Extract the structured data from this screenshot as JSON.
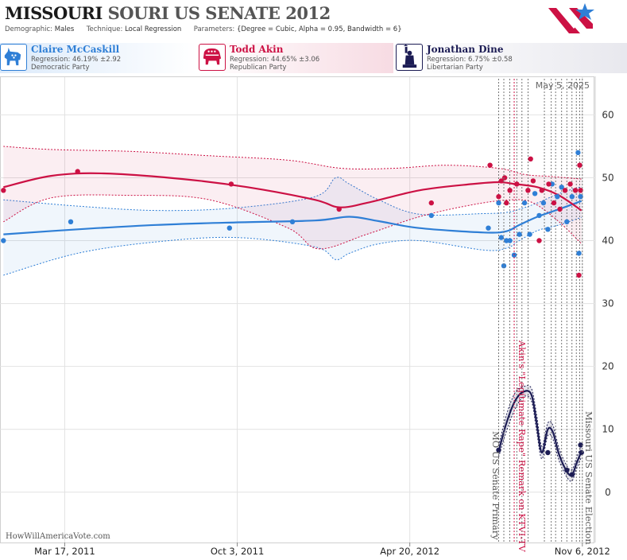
{
  "header": {
    "title_state": "MISSOURI",
    "title_rest": "SOURI US SENATE 2012",
    "demographic_label": "Demographic:",
    "demographic_value": "Males",
    "technique_label": "Technique:",
    "technique_value": "Local Regression",
    "parameters_label": "Parameters:",
    "parameters_value": "{Degree = Cubic, Alpha = 0.95, Bandwidth = 6}"
  },
  "candidates": [
    {
      "name": "Claire McCaskill",
      "regression": "Regression: 46.19% ±2.92",
      "party": "Democratic Party",
      "color": "#2f7fd6",
      "icon": "donkey-icon"
    },
    {
      "name": "Todd Akin",
      "regression": "Regression: 44.65% ±3.06",
      "party": "Republican Party",
      "color": "#cc1144",
      "icon": "elephant-icon"
    },
    {
      "name": "Jonathan Dine",
      "regression": "Regression: 6.75% ±0.58",
      "party": "Libertarian Party",
      "color": "#1c1c54",
      "icon": "liberty-icon"
    }
  ],
  "watermark": "HowWillAmericaVote.com",
  "colors": {
    "democrat": "#2f7fd6",
    "republican": "#cc1144",
    "libertarian": "#1c1c54",
    "grid": "#e2e2e2"
  },
  "chart_data": {
    "type": "scatter",
    "date_label": "May 5, 2025",
    "x_range": [
      "2011-01-01",
      "2012-11-20"
    ],
    "ylim": [
      -8,
      66
    ],
    "y_ticks": [
      0,
      10,
      20,
      30,
      40,
      50,
      60
    ],
    "x_ticks": [
      {
        "date": "2011-03-17",
        "label": "Mar 17, 2011"
      },
      {
        "date": "2011-10-03",
        "label": "Oct 3, 2011"
      },
      {
        "date": "2012-04-20",
        "label": "Apr 20, 2012"
      },
      {
        "date": "2012-11-06",
        "label": "Nov 6, 2012"
      }
    ],
    "grid": true,
    "series": [
      {
        "name": "Claire McCaskill",
        "color": "#2f7fd6",
        "points": [
          [
            "2011-01-05",
            40
          ],
          [
            "2011-03-24",
            43
          ],
          [
            "2011-09-24",
            42
          ],
          [
            "2011-12-06",
            43
          ],
          [
            "2012-05-15",
            44
          ],
          [
            "2012-07-20",
            42
          ],
          [
            "2012-08-01",
            46
          ],
          [
            "2012-08-04",
            40.5
          ],
          [
            "2012-08-07",
            36
          ],
          [
            "2012-08-10",
            40
          ],
          [
            "2012-08-14",
            40
          ],
          [
            "2012-08-19",
            37.7
          ],
          [
            "2012-08-25",
            41
          ],
          [
            "2012-08-31",
            46
          ],
          [
            "2012-09-06",
            41
          ],
          [
            "2012-09-12",
            47.5
          ],
          [
            "2012-09-17",
            44
          ],
          [
            "2012-09-22",
            46
          ],
          [
            "2012-09-27",
            41.8
          ],
          [
            "2012-10-02",
            49
          ],
          [
            "2012-10-08",
            47
          ],
          [
            "2012-10-13",
            48.5
          ],
          [
            "2012-10-19",
            43
          ],
          [
            "2012-10-25",
            47
          ],
          [
            "2012-11-01",
            54
          ],
          [
            "2012-11-02",
            38
          ],
          [
            "2012-11-04",
            47
          ]
        ],
        "trend": [
          [
            "2011-01-05",
            41
          ],
          [
            "2011-04-01",
            41.8
          ],
          [
            "2011-07-01",
            42.5
          ],
          [
            "2011-10-01",
            42.9
          ],
          [
            "2012-01-01",
            43.2
          ],
          [
            "2012-02-10",
            43.8
          ],
          [
            "2012-03-15",
            43.1
          ],
          [
            "2012-05-01",
            42
          ],
          [
            "2012-07-15",
            41.3
          ],
          [
            "2012-08-10",
            41.5
          ],
          [
            "2012-08-25",
            42.5
          ],
          [
            "2012-09-15",
            43.8
          ],
          [
            "2012-10-10",
            45
          ],
          [
            "2012-11-05",
            46.3
          ]
        ],
        "band_upper": [
          [
            "2011-01-05",
            46.5
          ],
          [
            "2011-04-01",
            45.5
          ],
          [
            "2011-07-01",
            44.8
          ],
          [
            "2011-10-01",
            45.2
          ],
          [
            "2012-01-01",
            47
          ],
          [
            "2012-01-25",
            50
          ],
          [
            "2012-02-10",
            49
          ],
          [
            "2012-03-15",
            46.5
          ],
          [
            "2012-05-01",
            44.2
          ],
          [
            "2012-07-15",
            44.3
          ],
          [
            "2012-08-10",
            44.5
          ],
          [
            "2012-08-25",
            45
          ],
          [
            "2012-09-15",
            46
          ],
          [
            "2012-10-10",
            47.5
          ],
          [
            "2012-11-05",
            48.6
          ]
        ],
        "band_lower": [
          [
            "2011-01-05",
            34.5
          ],
          [
            "2011-04-01",
            38
          ],
          [
            "2011-07-01",
            39.8
          ],
          [
            "2011-10-01",
            40.5
          ],
          [
            "2012-01-01",
            39
          ],
          [
            "2012-01-25",
            37
          ],
          [
            "2012-02-10",
            38
          ],
          [
            "2012-03-15",
            39.5
          ],
          [
            "2012-05-01",
            40
          ],
          [
            "2012-07-15",
            38.5
          ],
          [
            "2012-08-10",
            38.8
          ],
          [
            "2012-08-25",
            40
          ],
          [
            "2012-09-15",
            41.6
          ],
          [
            "2012-10-10",
            42.5
          ],
          [
            "2012-11-05",
            43.7
          ]
        ]
      },
      {
        "name": "Todd Akin",
        "color": "#cc1144",
        "points": [
          [
            "2011-01-05",
            48
          ],
          [
            "2011-04-01",
            51
          ],
          [
            "2011-09-26",
            49
          ],
          [
            "2012-01-29",
            45
          ],
          [
            "2012-05-15",
            46
          ],
          [
            "2012-07-22",
            52
          ],
          [
            "2012-08-01",
            47
          ],
          [
            "2012-08-04",
            49.5
          ],
          [
            "2012-08-08",
            50
          ],
          [
            "2012-08-10",
            46
          ],
          [
            "2012-08-14",
            48
          ],
          [
            "2012-08-22",
            49
          ],
          [
            "2012-09-04",
            48
          ],
          [
            "2012-09-07",
            53
          ],
          [
            "2012-09-10",
            49.5
          ],
          [
            "2012-09-17",
            40
          ],
          [
            "2012-09-20",
            48
          ],
          [
            "2012-09-28",
            49
          ],
          [
            "2012-10-04",
            46
          ],
          [
            "2012-10-11",
            45
          ],
          [
            "2012-10-17",
            48
          ],
          [
            "2012-10-23",
            49
          ],
          [
            "2012-10-29",
            48
          ],
          [
            "2012-11-02",
            34.5
          ],
          [
            "2012-11-03",
            52
          ],
          [
            "2012-11-04",
            48
          ]
        ],
        "trend": [
          [
            "2011-01-05",
            48.5
          ],
          [
            "2011-03-01",
            50.3
          ],
          [
            "2011-05-01",
            50.7
          ],
          [
            "2011-08-01",
            49.8
          ],
          [
            "2011-10-15",
            48.5
          ],
          [
            "2012-01-01",
            46.5
          ],
          [
            "2012-01-29",
            45.3
          ],
          [
            "2012-03-01",
            46
          ],
          [
            "2012-05-01",
            48
          ],
          [
            "2012-07-01",
            49
          ],
          [
            "2012-08-01",
            49.3
          ],
          [
            "2012-08-20",
            49
          ],
          [
            "2012-09-15",
            48.5
          ],
          [
            "2012-10-10",
            47.2
          ],
          [
            "2012-11-05",
            44.8
          ]
        ],
        "band_upper": [
          [
            "2011-01-05",
            55
          ],
          [
            "2011-03-01",
            54.5
          ],
          [
            "2011-06-01",
            54.2
          ],
          [
            "2011-09-01",
            53.5
          ],
          [
            "2011-12-01",
            52.8
          ],
          [
            "2012-02-01",
            51.5
          ],
          [
            "2012-04-01",
            51.5
          ],
          [
            "2012-06-01",
            52
          ],
          [
            "2012-08-01",
            51.5
          ],
          [
            "2012-09-01",
            50.5
          ],
          [
            "2012-10-01",
            50.2
          ],
          [
            "2012-11-05",
            49.8
          ]
        ],
        "band_lower": [
          [
            "2011-01-05",
            43
          ],
          [
            "2011-03-01",
            46.8
          ],
          [
            "2011-06-01",
            47.2
          ],
          [
            "2011-09-01",
            46.5
          ],
          [
            "2011-12-01",
            42
          ],
          [
            "2012-01-05",
            38.7
          ],
          [
            "2012-03-01",
            41
          ],
          [
            "2012-05-01",
            43.8
          ],
          [
            "2012-07-01",
            45.7
          ],
          [
            "2012-08-15",
            46.5
          ],
          [
            "2012-09-10",
            46
          ],
          [
            "2012-10-10",
            43
          ],
          [
            "2012-11-05",
            39.5
          ]
        ]
      },
      {
        "name": "Jonathan Dine",
        "color": "#1c1c54",
        "points": [
          [
            "2012-08-01",
            6.7
          ],
          [
            "2012-09-27",
            6.3
          ],
          [
            "2012-10-19",
            3.5
          ],
          [
            "2012-10-25",
            2.8
          ],
          [
            "2012-11-04",
            7.5
          ],
          [
            "2012-11-05",
            6.3
          ]
        ],
        "trend": [
          [
            "2012-08-01",
            6.5
          ],
          [
            "2012-08-10",
            11
          ],
          [
            "2012-08-20",
            14.5
          ],
          [
            "2012-08-30",
            16
          ],
          [
            "2012-09-08",
            15.5
          ],
          [
            "2012-09-14",
            11
          ],
          [
            "2012-09-20",
            6.3
          ],
          [
            "2012-09-27",
            10
          ],
          [
            "2012-10-03",
            9.5
          ],
          [
            "2012-10-10",
            6
          ],
          [
            "2012-10-19",
            3.3
          ],
          [
            "2012-10-25",
            2.7
          ],
          [
            "2012-10-30",
            4.5
          ],
          [
            "2012-11-05",
            6.5
          ]
        ],
        "band_upper": [
          [
            "2012-08-01",
            7.4
          ],
          [
            "2012-08-10",
            12.3
          ],
          [
            "2012-08-20",
            15.8
          ],
          [
            "2012-08-30",
            16.8
          ],
          [
            "2012-09-08",
            16.5
          ],
          [
            "2012-09-14",
            12.3
          ],
          [
            "2012-09-20",
            7.3
          ],
          [
            "2012-09-27",
            11
          ],
          [
            "2012-10-03",
            10.6
          ],
          [
            "2012-10-10",
            7
          ],
          [
            "2012-10-19",
            4.2
          ],
          [
            "2012-10-25",
            3.6
          ],
          [
            "2012-10-30",
            5.4
          ],
          [
            "2012-11-05",
            7.4
          ]
        ],
        "band_lower": [
          [
            "2012-08-01",
            5.6
          ],
          [
            "2012-08-10",
            9.7
          ],
          [
            "2012-08-20",
            13.2
          ],
          [
            "2012-08-30",
            15.2
          ],
          [
            "2012-09-08",
            14.5
          ],
          [
            "2012-09-14",
            9.7
          ],
          [
            "2012-09-20",
            5.3
          ],
          [
            "2012-09-27",
            9
          ],
          [
            "2012-10-03",
            8.4
          ],
          [
            "2012-10-10",
            5
          ],
          [
            "2012-10-19",
            2.4
          ],
          [
            "2012-10-25",
            1.8
          ],
          [
            "2012-10-30",
            3.6
          ],
          [
            "2012-11-05",
            5.6
          ]
        ]
      }
    ],
    "annotations": [
      {
        "date": "2012-08-07",
        "label": "MO US Senate Primary",
        "color": "#777777",
        "text_color": "#555555"
      },
      {
        "date": "2012-08-19",
        "label": "Akin's \"Legitimate Rape\" Remark on KTVI-TV",
        "color": "#cc1144",
        "text_color": "#cc1144"
      },
      {
        "date": "2012-11-06",
        "label": "Missouri US Senate Election",
        "color": "#777777",
        "text_color": "#555555"
      }
    ],
    "poll_dates": [
      "2012-08-01",
      "2012-08-14",
      "2012-08-22",
      "2012-08-28",
      "2012-09-04",
      "2012-09-23",
      "2012-10-01",
      "2012-10-06",
      "2012-10-13",
      "2012-10-19",
      "2012-10-25",
      "2012-10-30",
      "2012-11-03"
    ]
  }
}
